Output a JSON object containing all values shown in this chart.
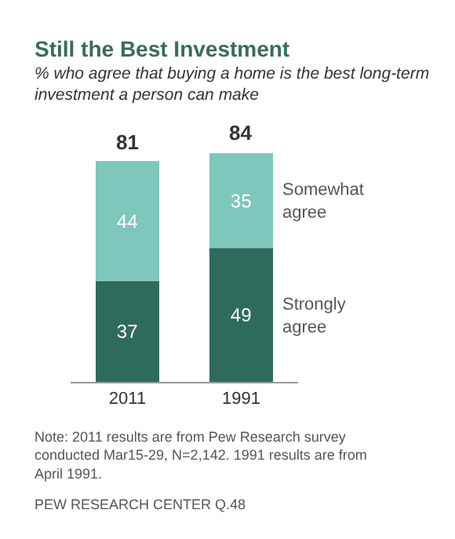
{
  "chart_data": {
    "type": "bar",
    "title": "Still the Best Investment",
    "subtitle": "% who agree that buying a home is the best long-term investment a person can make",
    "categories": [
      "2011",
      "1991"
    ],
    "stacked": true,
    "data_labels": true,
    "totals": [
      "81",
      "84"
    ],
    "series": [
      {
        "name": "Strongly agree",
        "color": "#2e6b5c",
        "values": [
          37,
          49
        ]
      },
      {
        "name": "Somewhat agree",
        "color": "#7fc6bb",
        "values": [
          44,
          35
        ]
      }
    ],
    "annotations": [
      "Note: 2011 results are from Pew Research survey conducted Mar15-29, N=2,142. 1991 results are from April 1991.",
      "PEW RESEARCH CENTER Q.48"
    ]
  }
}
